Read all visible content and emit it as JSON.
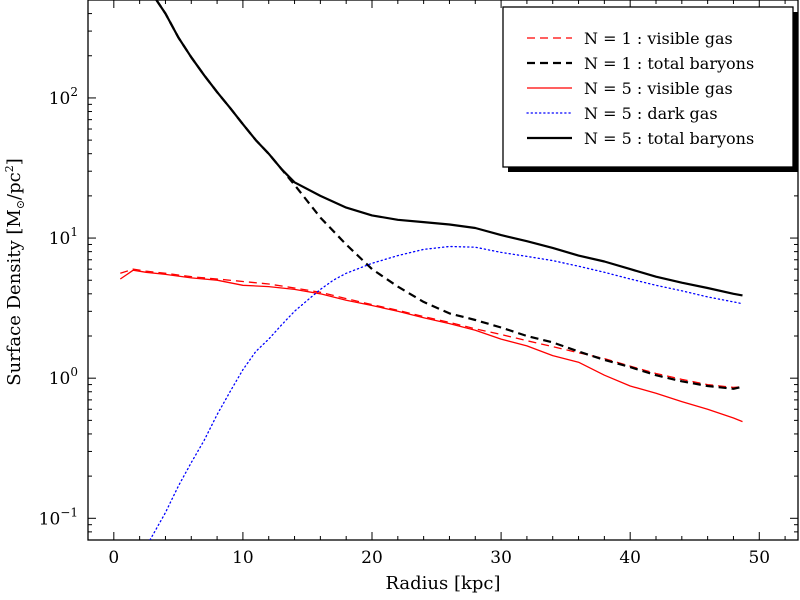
{
  "chart_data": {
    "type": "line",
    "title": "",
    "xlabel": "Radius [kpc]",
    "ylabel": "Surface Density [M⊙/pc²]",
    "ylabel_parts": {
      "prefix": "Surface Density [M",
      "sun": "⊙",
      "mid": "/pc",
      "exp": "2",
      "suffix": "]"
    },
    "xlim": [
      -2,
      53
    ],
    "ylim": [
      0.07,
      500
    ],
    "yscale": "log",
    "grid": false,
    "legend_position": "top-right",
    "x_ticks": [
      0,
      10,
      20,
      30,
      40,
      50
    ],
    "x_tick_labels": [
      "0",
      "10",
      "20",
      "30",
      "40",
      "50"
    ],
    "y_ticks": [
      {
        "value": 0.1,
        "base": "10",
        "exp": "−1"
      },
      {
        "value": 1,
        "base": "10",
        "exp": "0"
      },
      {
        "value": 10,
        "base": "10",
        "exp": "1"
      },
      {
        "value": 100,
        "base": "10",
        "exp": "2"
      }
    ],
    "series": [
      {
        "name": "N = 1 : visible gas",
        "color": "#ff0000",
        "dash": "dashed",
        "width": 1.3,
        "x": [
          0.5,
          1.5,
          2.5,
          4,
          6,
          8,
          10,
          12,
          14,
          16,
          18,
          20,
          22,
          24,
          26,
          28,
          30,
          32,
          34,
          36,
          38,
          40,
          42,
          44,
          46,
          48,
          48.7
        ],
        "y": [
          5.6,
          6.0,
          5.8,
          5.6,
          5.3,
          5.1,
          4.9,
          4.7,
          4.4,
          4.1,
          3.7,
          3.35,
          3.05,
          2.75,
          2.5,
          2.25,
          2.05,
          1.85,
          1.68,
          1.52,
          1.38,
          1.22,
          1.08,
          0.98,
          0.9,
          0.86,
          0.87
        ]
      },
      {
        "name": "N = 1 : total baryons",
        "color": "#000000",
        "dash": "dashed",
        "width": 2.2,
        "x": [
          3.3,
          4,
          5,
          6,
          7,
          8,
          9,
          10,
          11,
          12,
          13,
          14,
          16,
          18,
          20,
          22,
          24,
          26,
          28,
          30,
          32,
          34,
          36,
          38,
          40,
          42,
          44,
          46,
          48,
          48.7
        ],
        "y": [
          500,
          400,
          270,
          195,
          145,
          110,
          85,
          65,
          50,
          40,
          31,
          24,
          14,
          9.0,
          6.0,
          4.5,
          3.5,
          2.9,
          2.6,
          2.3,
          2.0,
          1.8,
          1.55,
          1.35,
          1.2,
          1.05,
          0.95,
          0.88,
          0.84,
          0.87
        ]
      },
      {
        "name": "N = 5 : visible gas",
        "color": "#ff0000",
        "dash": "solid",
        "width": 1.3,
        "x": [
          0.5,
          1.5,
          2.5,
          4,
          6,
          8,
          10,
          12,
          14,
          16,
          18,
          20,
          22,
          24,
          26,
          28,
          30,
          32,
          34,
          36,
          38,
          40,
          42,
          44,
          46,
          48,
          48.7
        ],
        "y": [
          5.1,
          5.9,
          5.7,
          5.5,
          5.2,
          5.0,
          4.6,
          4.5,
          4.3,
          4.0,
          3.6,
          3.3,
          3.0,
          2.7,
          2.45,
          2.2,
          1.9,
          1.7,
          1.45,
          1.3,
          1.05,
          0.88,
          0.78,
          0.68,
          0.6,
          0.52,
          0.49
        ]
      },
      {
        "name": "N = 5 : dark gas",
        "color": "#0000ff",
        "dash": "dotted",
        "width": 1.3,
        "x": [
          2.8,
          4,
          5,
          6,
          7,
          8,
          9,
          10,
          11,
          12,
          13,
          14,
          15,
          16,
          17,
          18,
          20,
          22,
          24,
          26,
          28,
          30,
          32,
          34,
          36,
          38,
          40,
          42,
          44,
          46,
          48,
          48.7
        ],
        "y": [
          0.07,
          0.11,
          0.17,
          0.25,
          0.36,
          0.55,
          0.8,
          1.15,
          1.55,
          1.9,
          2.4,
          3.0,
          3.6,
          4.3,
          5.0,
          5.6,
          6.6,
          7.5,
          8.3,
          8.7,
          8.6,
          7.9,
          7.4,
          6.9,
          6.3,
          5.7,
          5.1,
          4.6,
          4.2,
          3.8,
          3.5,
          3.4
        ]
      },
      {
        "name": "N = 5 : total baryons",
        "color": "#000000",
        "dash": "solid",
        "width": 2.2,
        "x": [
          3.3,
          4,
          5,
          6,
          7,
          8,
          9,
          10,
          11,
          12,
          13,
          14,
          16,
          18,
          20,
          22,
          24,
          26,
          28,
          30,
          32,
          34,
          36,
          38,
          40,
          42,
          44,
          46,
          48,
          48.7
        ],
        "y": [
          500,
          400,
          270,
          195,
          145,
          110,
          85,
          65,
          50,
          40,
          31,
          25,
          20,
          16.5,
          14.5,
          13.5,
          13.0,
          12.5,
          11.8,
          10.5,
          9.5,
          8.5,
          7.5,
          6.8,
          6.0,
          5.3,
          4.8,
          4.4,
          4.0,
          3.9
        ]
      }
    ]
  }
}
